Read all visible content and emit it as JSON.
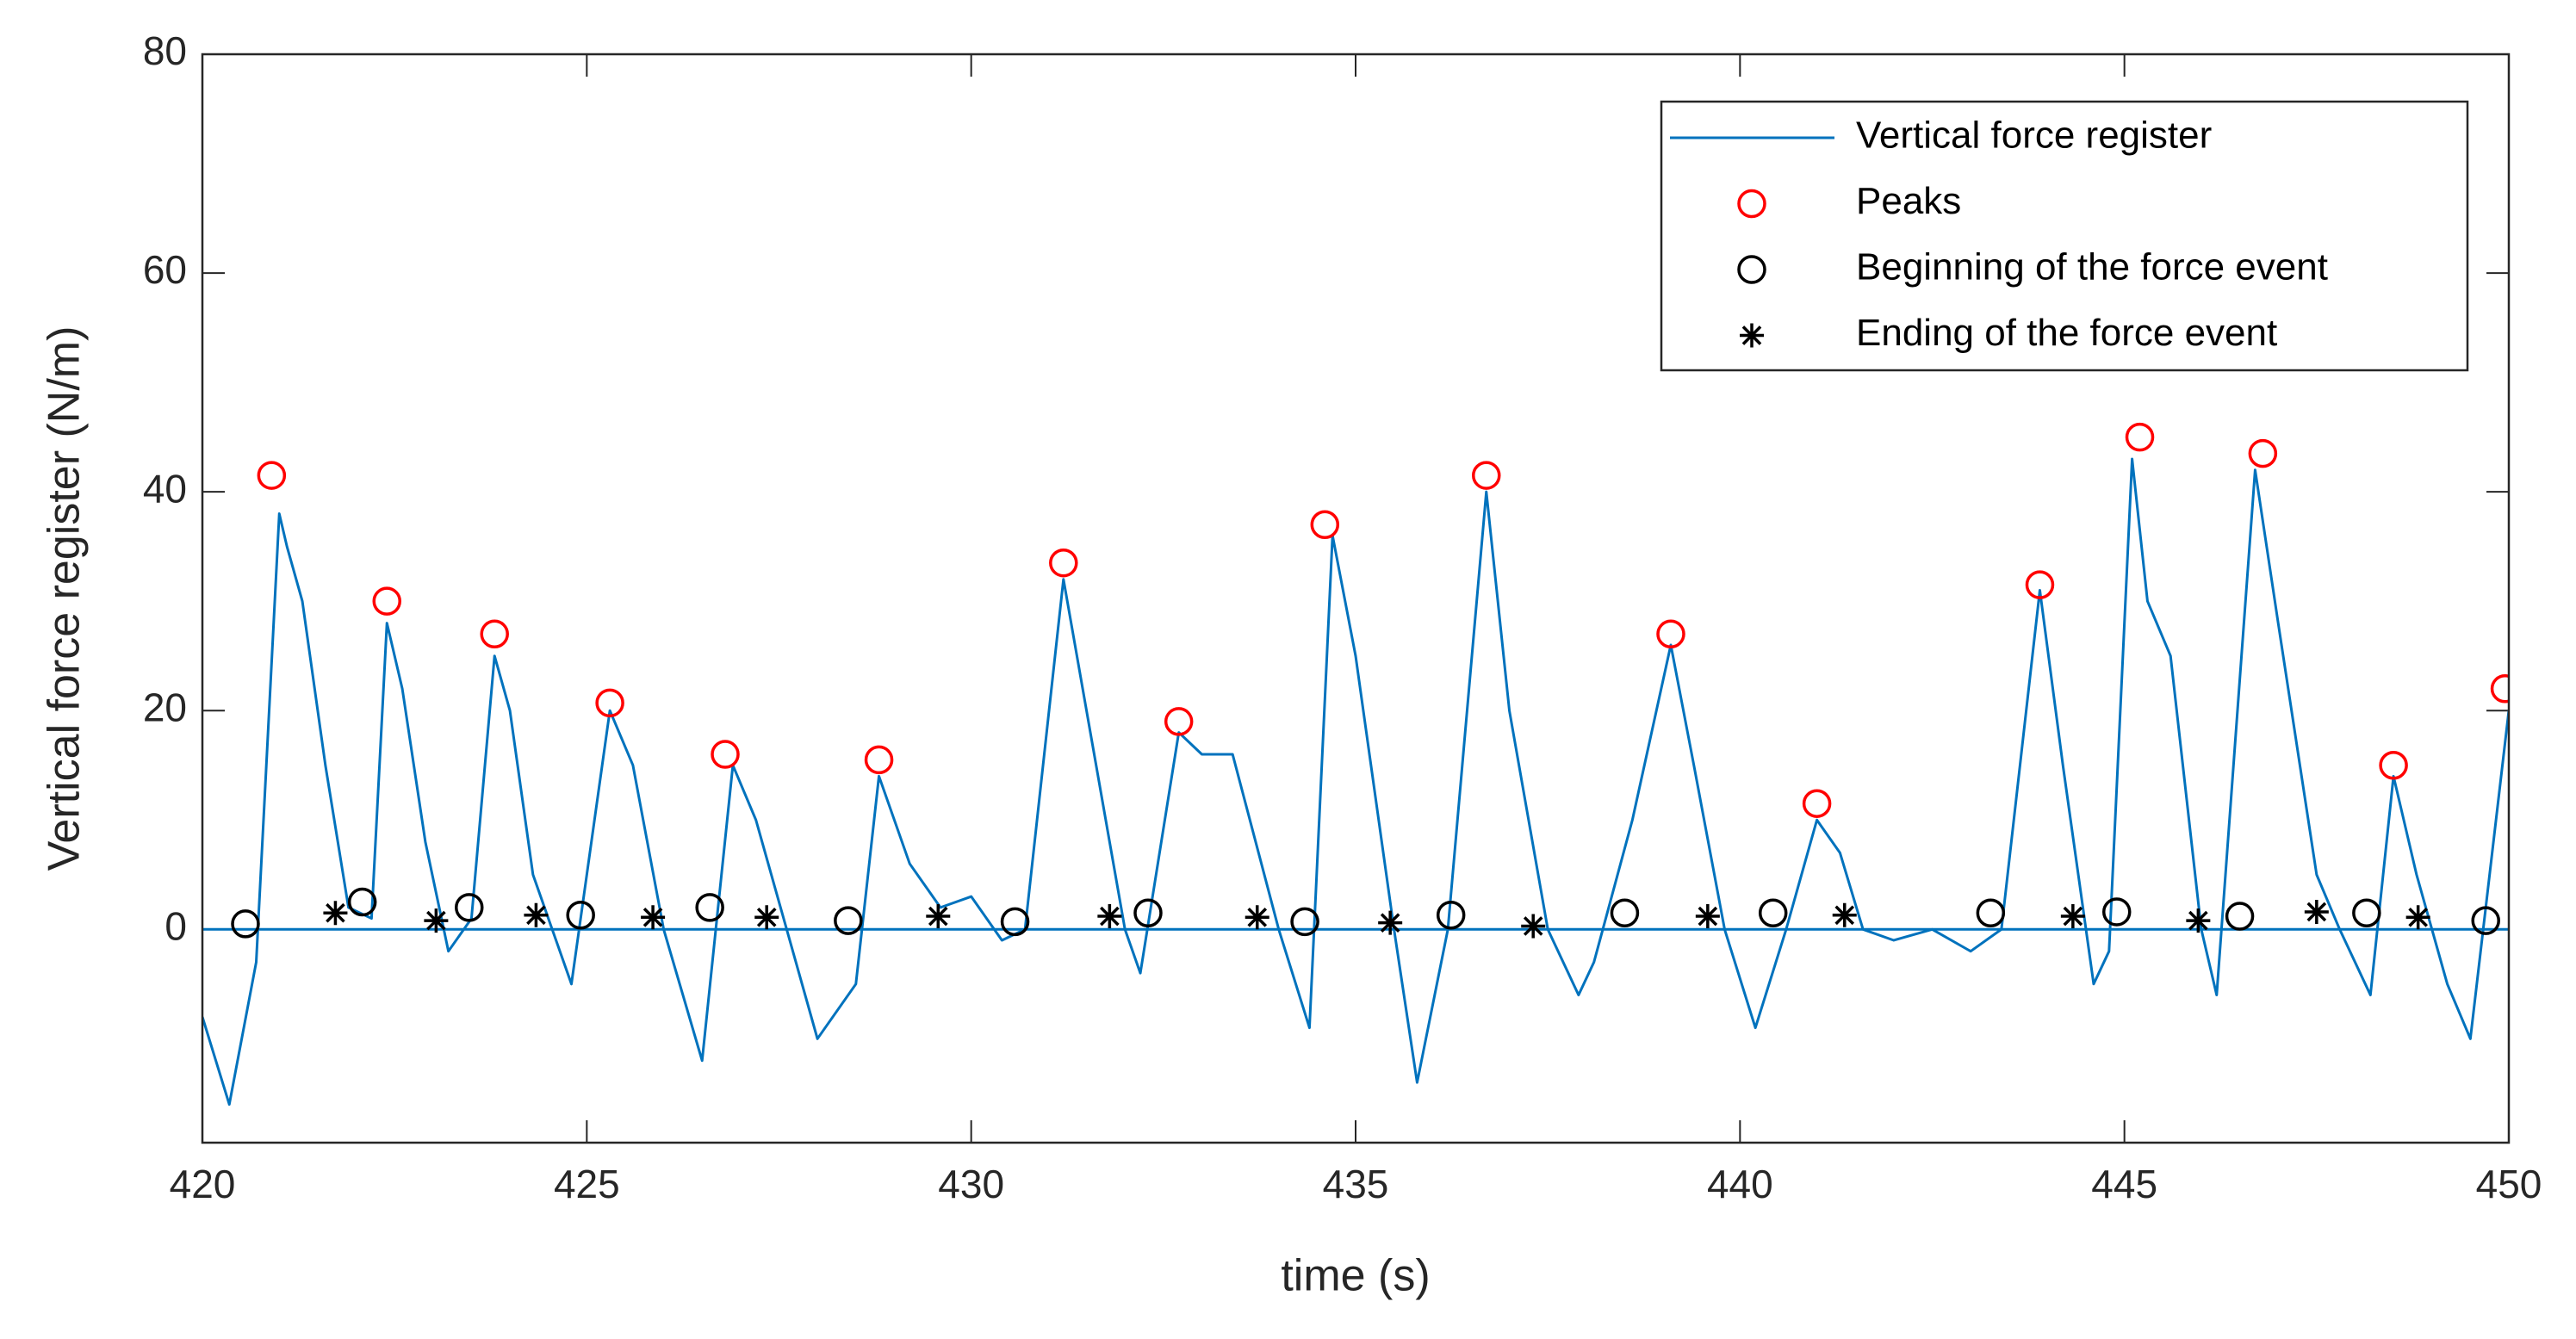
{
  "chart_data": {
    "type": "line",
    "xlabel": "time (s)",
    "ylabel": "Vertical force register (N/m)",
    "xlim": [
      420,
      450
    ],
    "xticks": [
      420,
      425,
      430,
      435,
      440,
      445,
      450
    ],
    "ylim": [
      -19.5,
      80
    ],
    "yticks": [
      0,
      20,
      40,
      60,
      80
    ],
    "legend": "northeast",
    "grid": false,
    "series": [
      {
        "name": "Vertical force register",
        "color": "#0072bd",
        "mode": "line",
        "x": [
          420,
          420.35,
          420.7,
          421.0,
          421.1,
          421.3,
          421.6,
          421.9,
          422.2,
          422.4,
          422.6,
          422.9,
          423.2,
          423.5,
          423.8,
          424.0,
          424.3,
          424.8,
          425.3,
          425.6,
          426.0,
          426.5,
          426.9,
          427.2,
          427.6,
          428.0,
          428.5,
          428.8,
          429.2,
          429.6,
          430.0,
          430.4,
          430.7,
          431.2,
          431.5,
          432.0,
          432.2,
          432.7,
          433.0,
          433.4,
          434.0,
          434.4,
          434.7,
          435.0,
          435.5,
          435.8,
          436.2,
          436.7,
          437.0,
          437.5,
          437.9,
          438.1,
          438.6,
          439.1,
          439.4,
          439.8,
          440.2,
          440.6,
          441.0,
          441.3,
          441.6,
          442.0,
          442.5,
          443.0,
          443.4,
          443.9,
          444.2,
          444.6,
          444.8,
          445.1,
          445.3,
          445.6,
          446.0,
          446.2,
          446.7,
          447.0,
          447.5,
          447.8,
          448.2,
          448.5,
          448.8,
          449.2,
          449.5,
          450.0
        ],
        "values": [
          -8,
          -16,
          -3,
          38,
          35,
          30,
          15,
          2,
          1,
          28,
          22,
          8,
          -2,
          1,
          25,
          20,
          5,
          -5,
          20,
          15,
          0,
          -12,
          15,
          10,
          0,
          -10,
          -5,
          14,
          6,
          2,
          3,
          -1,
          0,
          32,
          20,
          0,
          -4,
          18,
          16,
          16,
          0,
          -9,
          36,
          25,
          0,
          -14,
          0,
          40,
          20,
          0,
          -6,
          -3,
          10,
          26,
          15,
          0,
          -9,
          0,
          10,
          7,
          0,
          -1,
          0,
          -2,
          0,
          31,
          15,
          -5,
          -2,
          43,
          30,
          25,
          0,
          -6,
          42,
          28,
          5,
          0,
          -6,
          14,
          5,
          -5,
          -10,
          20
        ]
      },
      {
        "name": "Peaks",
        "color": "#ff0000",
        "mode": "marker",
        "marker": "o",
        "x": [
          420.9,
          422.4,
          423.8,
          425.3,
          426.8,
          428.8,
          431.2,
          432.7,
          434.6,
          436.7,
          439.1,
          441.0,
          443.9,
          445.2,
          446.8,
          448.5,
          449.95
        ],
        "values": [
          41.5,
          30,
          27,
          20.7,
          16,
          15.5,
          33.5,
          19,
          37,
          41.5,
          27,
          11.5,
          31.5,
          45,
          43.5,
          15,
          22
        ]
      },
      {
        "name": "Beginning of the force event",
        "color": "#000000",
        "mode": "marker",
        "marker": "o",
        "x": [
          420.56,
          422.08,
          423.47,
          424.92,
          426.6,
          428.4,
          430.57,
          432.3,
          434.34,
          436.24,
          438.5,
          440.43,
          443.26,
          444.9,
          446.5,
          448.15,
          449.7
        ],
        "values": [
          0.5,
          2.5,
          2,
          1.3,
          2,
          0.8,
          0.7,
          1.5,
          0.7,
          1.3,
          1.5,
          1.5,
          1.5,
          1.6,
          1.2,
          1.5,
          0.8
        ]
      },
      {
        "name": "Ending of the force event",
        "color": "#000000",
        "mode": "marker",
        "marker": "*",
        "x": [
          421.73,
          423.04,
          424.34,
          425.86,
          427.34,
          429.57,
          431.8,
          433.72,
          435.45,
          437.31,
          439.58,
          441.36,
          444.33,
          445.96,
          447.5,
          448.82
        ],
        "values": [
          1.5,
          0.8,
          1.3,
          1.1,
          1.1,
          1.2,
          1.2,
          1.1,
          0.6,
          0.3,
          1.2,
          1.3,
          1.2,
          0.8,
          1.6,
          1.1
        ]
      }
    ]
  }
}
